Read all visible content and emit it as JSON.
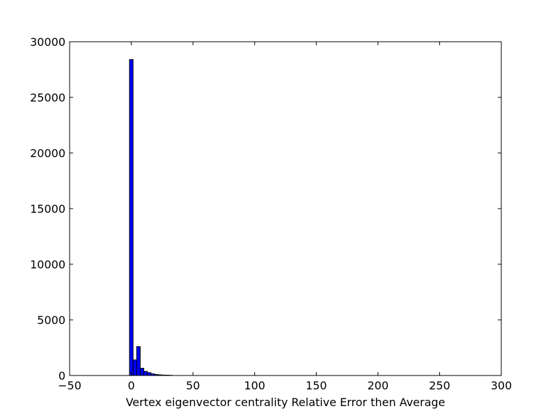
{
  "chart_data": {
    "type": "bar",
    "title": "",
    "xlabel": "Vertex eigenvector centrality Relative Error then Average",
    "ylabel": "",
    "xlim": [
      -50,
      300
    ],
    "ylim": [
      0,
      30000
    ],
    "x_ticks": [
      -50,
      0,
      50,
      100,
      150,
      200,
      250,
      300
    ],
    "y_ticks": [
      0,
      5000,
      10000,
      15000,
      20000,
      25000,
      30000
    ],
    "x_tick_labels": [
      "−50",
      "0",
      "50",
      "100",
      "150",
      "200",
      "250",
      "300"
    ],
    "y_tick_labels": [
      "0",
      "5000",
      "10000",
      "15000",
      "20000",
      "25000",
      "30000"
    ],
    "grid": false,
    "legend": "none",
    "bar_color": "#0000ff",
    "edge_color": "#000000",
    "bin_width": 2.9,
    "bins": [
      {
        "x0": -1.45,
        "value": 28400
      },
      {
        "x0": 1.45,
        "value": 1400
      },
      {
        "x0": 4.35,
        "value": 2600
      },
      {
        "x0": 7.25,
        "value": 650
      },
      {
        "x0": 10.15,
        "value": 370
      },
      {
        "x0": 13.05,
        "value": 260
      },
      {
        "x0": 15.95,
        "value": 150
      },
      {
        "x0": 18.85,
        "value": 90
      },
      {
        "x0": 21.75,
        "value": 60
      },
      {
        "x0": 24.65,
        "value": 40
      },
      {
        "x0": 27.55,
        "value": 30
      },
      {
        "x0": 30.45,
        "value": 20
      }
    ]
  }
}
